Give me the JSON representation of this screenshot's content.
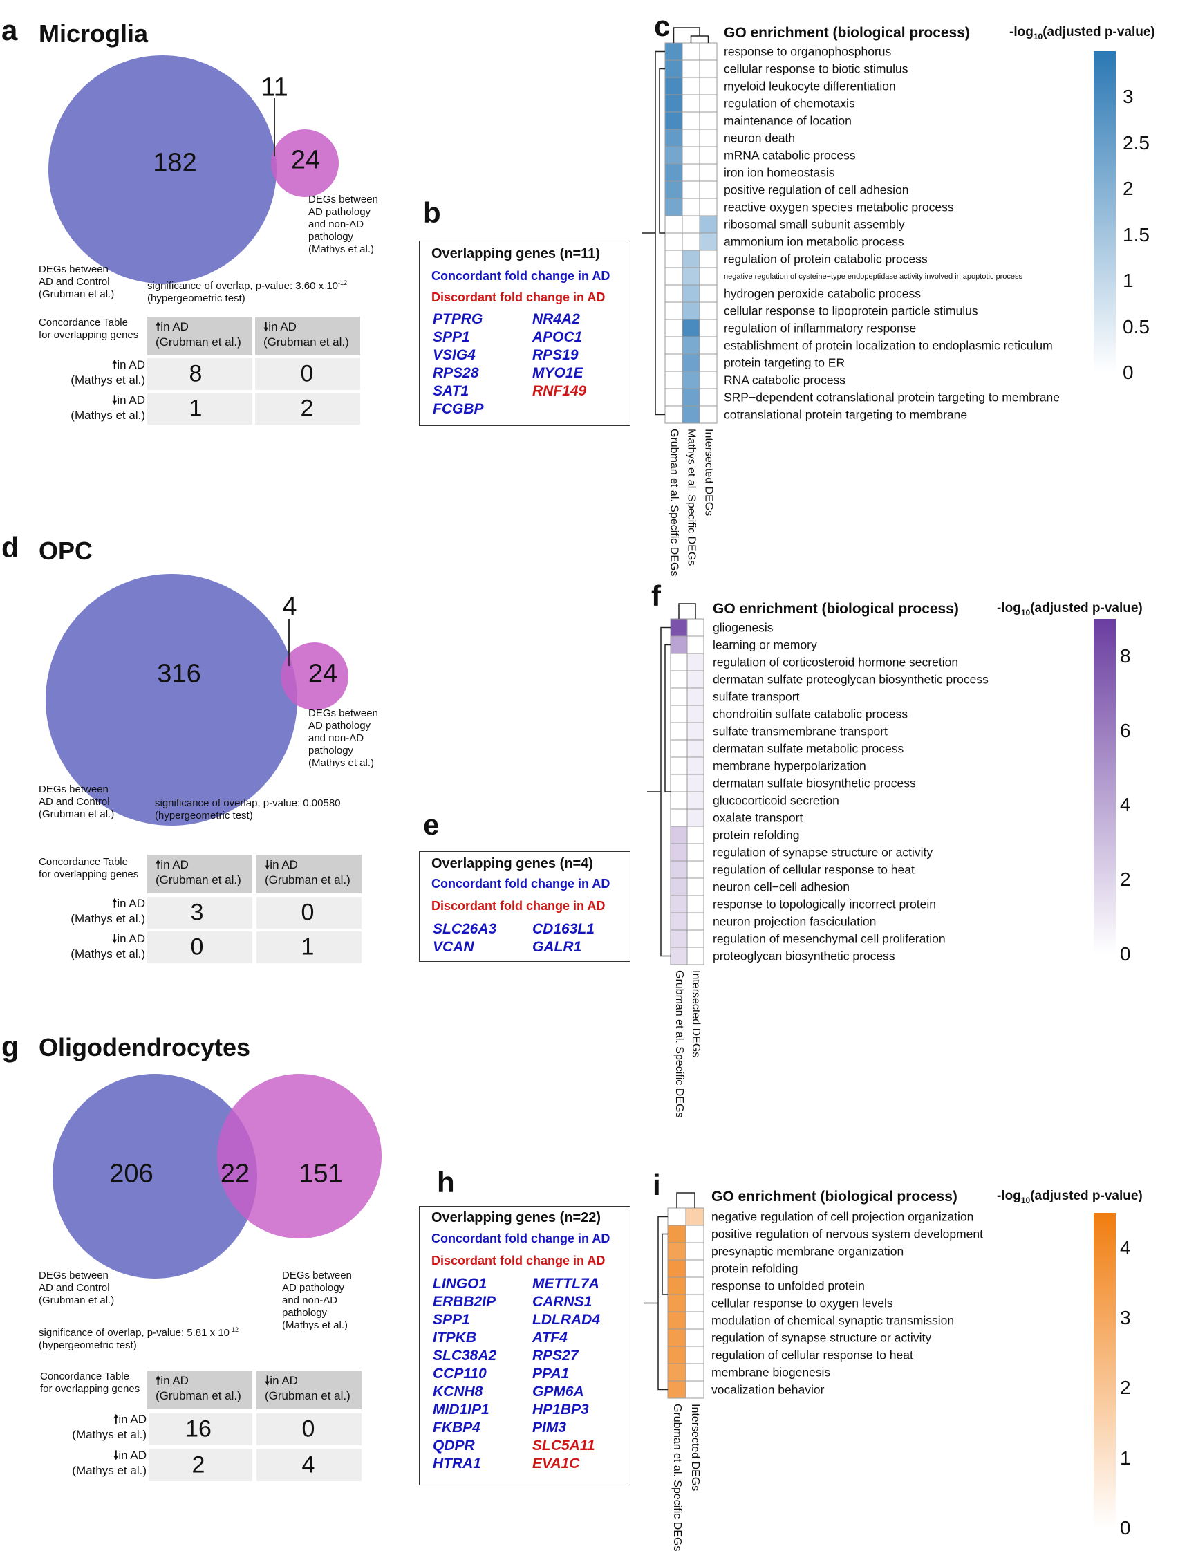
{
  "panels": {
    "a": {
      "letter": "a",
      "title": "Microglia"
    },
    "b": {
      "letter": "b"
    },
    "c": {
      "letter": "c"
    },
    "d": {
      "letter": "d",
      "title": "OPC"
    },
    "e": {
      "letter": "e"
    },
    "f": {
      "letter": "f"
    },
    "g": {
      "letter": "g",
      "title": "Oligodendrocytes"
    },
    "h": {
      "letter": "h"
    },
    "i": {
      "letter": "i"
    }
  },
  "venn": {
    "microglia": {
      "left": "182",
      "right": "24",
      "overlap": "11",
      "left_label": "DEGs between\nAD and Control\n(Grubman et al.)",
      "right_label": "DEGs between\nAD pathology\nand non-AD\npathology\n(Mathys et al.)",
      "sig_line1": "significance of overlap, p-value: 3.60 x 10",
      "sig_exp": "-12",
      "sig_line2": "(hypergeometric test)"
    },
    "opc": {
      "left": "316",
      "right": "24",
      "overlap": "4",
      "left_label": "DEGs between\nAD and Control\n(Grubman et al.)",
      "right_label": "DEGs between\nAD pathology\nand non-AD\npathology\n(Mathys et al.)",
      "sig_line1": "significance of overlap, p-value: 0.00580",
      "sig_line2": "(hypergeometric test)"
    },
    "oligo": {
      "left": "206",
      "right": "151",
      "overlap": "22",
      "left_label": "DEGs between\nAD and Control\n(Grubman et al.)",
      "right_label": "DEGs between\nAD pathology\nand non-AD\npathology\n(Mathys et al.)",
      "sig_line1": "significance of overlap, p-value: 5.81 x 10",
      "sig_exp": "-12",
      "sig_line2": "(hypergeometric test)"
    }
  },
  "concordance": {
    "caption": "Concordance Table\nfor overlapping genes",
    "col_up": "in AD\n(Grubman et al.)",
    "col_down": "in AD\n(Grubman et al.)",
    "row_up": "in AD\n(Mathys et al.)",
    "row_down": "in AD\n(Mathys et al.)",
    "microglia": {
      "uu": "8",
      "ud": "0",
      "du": "1",
      "dd": "2"
    },
    "opc": {
      "uu": "3",
      "ud": "0",
      "du": "0",
      "dd": "1"
    },
    "oligo": {
      "uu": "16",
      "ud": "0",
      "du": "2",
      "dd": "4"
    }
  },
  "overlap_boxes": {
    "concordant": "Concordant fold change in AD",
    "discordant": "Discordant fold change in AD",
    "b": {
      "title": "Overlapping genes (n=11)",
      "col1": [
        "PTPRG",
        "SPP1",
        "VSIG4",
        "RPS28",
        "SAT1",
        "FCGBP"
      ],
      "col2": [
        "NR4A2",
        "APOC1",
        "RPS19",
        "MYO1E",
        "RNF149"
      ],
      "col2_disc": [
        false,
        false,
        false,
        false,
        true
      ]
    },
    "e": {
      "title": "Overlapping genes (n=4)",
      "col1": [
        "SLC26A3",
        "VCAN"
      ],
      "col2": [
        "CD163L1",
        "GALR1"
      ]
    },
    "h": {
      "title": "Overlapping genes (n=22)",
      "col1": [
        "LINGO1",
        "ERBB2IP",
        "SPP1",
        "ITPKB",
        "SLC38A2",
        "CCP110",
        "KCNH8",
        "MID1IP1",
        "FKBP4",
        "QDPR",
        "HTRA1"
      ],
      "col2": [
        "METTL7A",
        "CARNS1",
        "LDLRAD4",
        "ATF4",
        "RPS27",
        "PPA1",
        "GPM6A",
        "HP1BP3",
        "PIM3",
        "SLC5A11",
        "EVA1C"
      ],
      "col2_disc": [
        false,
        false,
        false,
        false,
        false,
        false,
        false,
        false,
        false,
        true,
        true
      ]
    }
  },
  "heatmap_header": {
    "title": "GO enrichment (biological process)",
    "legend_prefix": "-log",
    "legend_sub": "10",
    "legend_suffix": "(adjusted p-value)"
  },
  "chart_data": [
    {
      "type": "heatmap",
      "panel": "c",
      "title": "GO enrichment (biological process)",
      "colorbar_label": "-log10(adjusted p-value)",
      "color": "#2b78b4",
      "vmax": 3.5,
      "colorbar_ticks": [
        "3",
        "2.5",
        "2",
        "1.5",
        "1",
        "0.5",
        "0"
      ],
      "columns": [
        "Grubman et al. Specific DEGs",
        "Mathys et al. Specific DEGs",
        "Intersected DEGs"
      ],
      "rows": [
        "response to organophosphorus",
        "cellular response to biotic stimulus",
        "myeloid leukocyte differentiation",
        "regulation of chemotaxis",
        "maintenance of location",
        "neuron death",
        "mRNA catabolic process",
        "iron ion homeostasis",
        "positive regulation of cell adhesion",
        "reactive oxygen species metabolic process",
        "ribosomal small subunit assembly",
        "ammonium ion metabolic process",
        "regulation of protein catabolic process",
        "negative regulation of cysteine−type endopeptidase activity involved in apoptotic process",
        "hydrogen peroxide catabolic process",
        "cellular response to lipoprotein particle stimulus",
        "regulation of inflammatory response",
        "establishment of protein localization to endoplasmic reticulum",
        "protein targeting to ER",
        "RNA catabolic process",
        "SRP−dependent cotranslational protein targeting to membrane",
        "cotranslational protein targeting to membrane"
      ],
      "values": [
        [
          2.8,
          0,
          0
        ],
        [
          2.8,
          0,
          0
        ],
        [
          3.0,
          0,
          0
        ],
        [
          3.0,
          0,
          0
        ],
        [
          3.0,
          0,
          0
        ],
        [
          2.6,
          0,
          0
        ],
        [
          2.3,
          0,
          0
        ],
        [
          2.6,
          0,
          0
        ],
        [
          2.5,
          0,
          0
        ],
        [
          2.3,
          0,
          0
        ],
        [
          0,
          0,
          1.5
        ],
        [
          0,
          0,
          1.2
        ],
        [
          0,
          1.4,
          0
        ],
        [
          0,
          1.3,
          0
        ],
        [
          0,
          1.5,
          0
        ],
        [
          0,
          1.6,
          0
        ],
        [
          0,
          3.0,
          0
        ],
        [
          0,
          2.2,
          0
        ],
        [
          0,
          2.4,
          0
        ],
        [
          0,
          2.2,
          0
        ],
        [
          0,
          2.4,
          0
        ],
        [
          0,
          2.4,
          0
        ]
      ],
      "tiny_rows": [
        13
      ]
    },
    {
      "type": "heatmap",
      "panel": "f",
      "title": "GO enrichment (biological process)",
      "colorbar_label": "-log10(adjusted p-value)",
      "color": "#6a3da0",
      "vmax": 9,
      "colorbar_ticks": [
        "8",
        "6",
        "4",
        "2",
        "0"
      ],
      "columns": [
        "Grubman et al. Specific DEGs",
        "Intersected DEGs"
      ],
      "rows": [
        "gliogenesis",
        "learning or memory",
        "regulation of corticosteroid hormone secretion",
        "dermatan sulfate proteoglycan biosynthetic process",
        "sulfate transport",
        "chondroitin sulfate catabolic process",
        "sulfate transmembrane transport",
        "dermatan sulfate metabolic process",
        "membrane hyperpolarization",
        "dermatan sulfate biosynthetic process",
        "glucocorticoid secretion",
        "oxalate transport",
        "protein refolding",
        "regulation of synapse structure or activity",
        "regulation of cellular response to heat",
        "neuron cell−cell adhesion",
        "response to topologically incorrect protein",
        "neuron projection fasciculation",
        "regulation of mesenchymal cell proliferation",
        "proteoglycan biosynthetic process"
      ],
      "values": [
        [
          8.0,
          0
        ],
        [
          4.2,
          0
        ],
        [
          0,
          0.8
        ],
        [
          0,
          0.8
        ],
        [
          0,
          0.8
        ],
        [
          0,
          0.8
        ],
        [
          0,
          0.8
        ],
        [
          0,
          0.8
        ],
        [
          0,
          0.8
        ],
        [
          0,
          0.8
        ],
        [
          0,
          0.8
        ],
        [
          0,
          0.8
        ],
        [
          2.4,
          0
        ],
        [
          2.2,
          0
        ],
        [
          2.0,
          0
        ],
        [
          2.0,
          0
        ],
        [
          1.8,
          0
        ],
        [
          1.7,
          0
        ],
        [
          1.7,
          0
        ],
        [
          1.6,
          0
        ]
      ]
    },
    {
      "type": "heatmap",
      "panel": "i",
      "title": "GO enrichment (biological process)",
      "colorbar_label": "-log10(adjusted p-value)",
      "color": "#f07d10",
      "vmax": 4.5,
      "colorbar_ticks": [
        "4",
        "3",
        "2",
        "1",
        "0"
      ],
      "columns": [
        "Grubman et al. Specific DEGs",
        "Intersected DEGs"
      ],
      "rows": [
        "negative regulation of cell projection organization",
        "positive regulation of nervous system development",
        "presynaptic membrane organization",
        "protein refolding",
        "response to unfolded protein",
        "cellular response to oxygen levels",
        "modulation of chemical synaptic transmission",
        "regulation of synapse structure or activity",
        "regulation of cellular response to heat",
        "membrane biogenesis",
        "vocalization behavior"
      ],
      "values": [
        [
          0,
          1.6
        ],
        [
          3.5,
          0
        ],
        [
          3.2,
          0
        ],
        [
          3.6,
          0
        ],
        [
          3.5,
          0
        ],
        [
          3.4,
          0
        ],
        [
          3.4,
          0
        ],
        [
          3.4,
          0
        ],
        [
          3.4,
          0
        ],
        [
          3.2,
          0
        ],
        [
          3.3,
          0
        ]
      ]
    }
  ]
}
